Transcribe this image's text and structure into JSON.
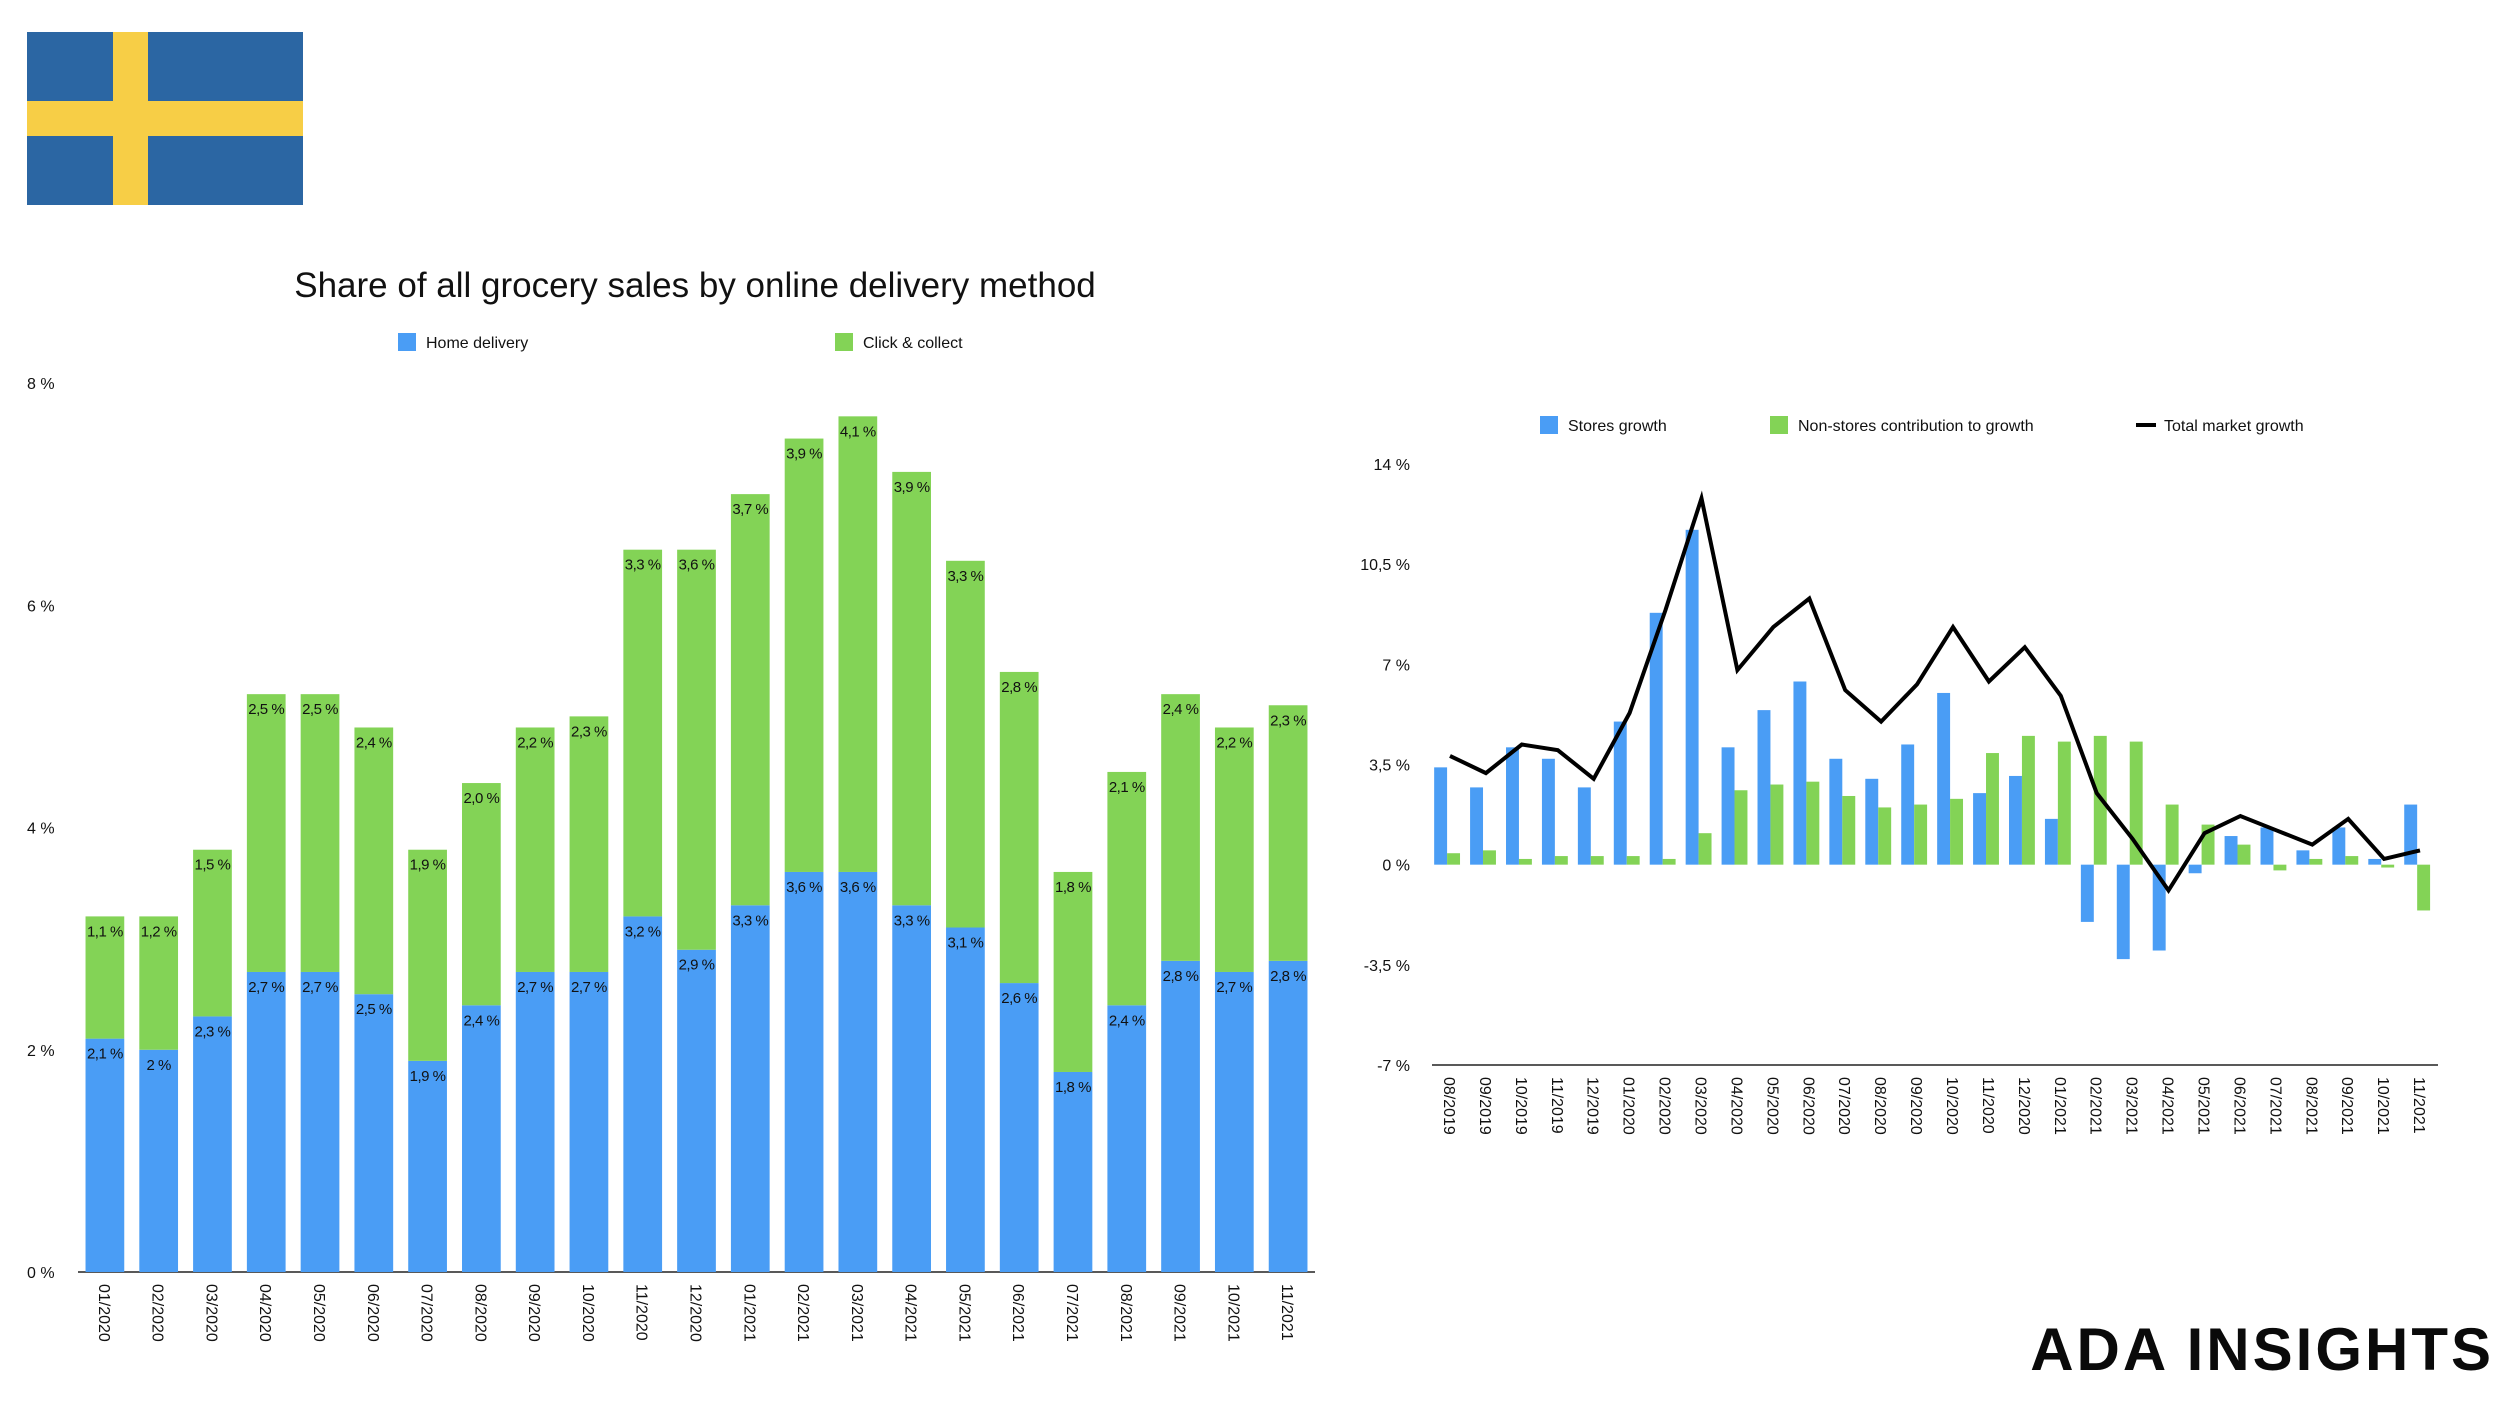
{
  "flag": {
    "name": "sweden-flag",
    "colors": {
      "blue": "#2B66A3",
      "yellow": "#F7CE46"
    }
  },
  "brand": "ADA INSIGHTS",
  "colors": {
    "blue": "#4A9DF5",
    "green": "#83D356",
    "line": "#000000",
    "axis": "#222222"
  },
  "chart_data": [
    {
      "type": "bar",
      "stacked": true,
      "title": "Share of all grocery sales by online delivery method",
      "xlabel": "",
      "ylabel": "",
      "ylim": [
        0,
        8
      ],
      "yticks": [
        "0 %",
        "2 %",
        "4 %",
        "6 %",
        "8 %"
      ],
      "yticks_values": [
        0,
        2,
        4,
        6,
        8
      ],
      "grid": false,
      "legend_position": "top",
      "categories": [
        "01/2020",
        "02/2020",
        "03/2020",
        "04/2020",
        "05/2020",
        "06/2020",
        "07/2020",
        "08/2020",
        "09/2020",
        "10/2020",
        "11/2020",
        "12/2020",
        "01/2021",
        "02/2021",
        "03/2021",
        "04/2021",
        "05/2021",
        "06/2021",
        "07/2021",
        "08/2021",
        "09/2021",
        "10/2021",
        "11/2021"
      ],
      "series": [
        {
          "name": "Home delivery",
          "color": "#4A9DF5",
          "values": [
            2.1,
            2.0,
            2.3,
            2.7,
            2.7,
            2.5,
            1.9,
            2.4,
            2.7,
            2.7,
            3.2,
            2.9,
            3.3,
            3.6,
            3.6,
            3.3,
            3.1,
            2.6,
            1.8,
            2.4,
            2.8,
            2.7,
            2.8
          ],
          "labels": [
            "2,1 %",
            "2 %",
            "2,3 %",
            "2,7 %",
            "2,7 %",
            "2,5 %",
            "1,9 %",
            "2,4 %",
            "2,7 %",
            "2,7 %",
            "3,2 %",
            "2,9 %",
            "3,3 %",
            "3,6 %",
            "3,6 %",
            "3,3 %",
            "3,1 %",
            "2,6 %",
            "1,8 %",
            "2,4 %",
            "2,8 %",
            "2,7 %",
            "2,8 %"
          ]
        },
        {
          "name": "Click & collect",
          "color": "#83D356",
          "values": [
            1.1,
            1.2,
            1.5,
            2.5,
            2.5,
            2.4,
            1.9,
            2.0,
            2.2,
            2.3,
            3.3,
            3.6,
            3.7,
            3.9,
            4.1,
            3.9,
            3.3,
            2.8,
            1.8,
            2.1,
            2.4,
            2.2,
            2.3
          ],
          "labels": [
            "1,1 %",
            "1,2 %",
            "1,5 %",
            "2,5 %",
            "2,5 %",
            "2,4 %",
            "1,9 %",
            "2,0 %",
            "2,2 %",
            "2,3 %",
            "3,3 %",
            "3,6 %",
            "3,7 %",
            "3,9 %",
            "4,1 %",
            "3,9 %",
            "3,3 %",
            "2,8 %",
            "1,8 %",
            "2,1 %",
            "2,4 %",
            "2,2 %",
            "2,3 %"
          ]
        }
      ]
    },
    {
      "type": "bar",
      "title": "",
      "xlabel": "",
      "ylabel": "",
      "ylim": [
        -7,
        14
      ],
      "yticks": [
        "-7 %",
        "-3,5 %",
        "0 %",
        "3,5 %",
        "7 %",
        "10,5 %",
        "14 %"
      ],
      "yticks_values": [
        -7,
        -3.5,
        0,
        3.5,
        7,
        10.5,
        14
      ],
      "grid": false,
      "legend_position": "top",
      "categories": [
        "08/2019",
        "09/2019",
        "10/2019",
        "11/2019",
        "12/2019",
        "01/2020",
        "02/2020",
        "03/2020",
        "04/2020",
        "05/2020",
        "06/2020",
        "07/2020",
        "08/2020",
        "09/2020",
        "10/2020",
        "11/2020",
        "12/2020",
        "01/2021",
        "02/2021",
        "03/2021",
        "04/2021",
        "05/2021",
        "06/2021",
        "07/2021",
        "08/2021",
        "09/2021",
        "10/2021",
        "11/2021"
      ],
      "series": [
        {
          "name": "Stores growth",
          "type": "bar",
          "color": "#4A9DF5",
          "values": [
            3.4,
            2.7,
            4.1,
            3.7,
            2.7,
            5.0,
            8.8,
            11.7,
            4.1,
            5.4,
            6.4,
            3.7,
            3.0,
            4.2,
            6.0,
            2.5,
            3.1,
            1.6,
            -2.0,
            -3.3,
            -3.0,
            -0.3,
            1.0,
            1.3,
            0.5,
            1.3,
            0.2,
            2.1
          ]
        },
        {
          "name": "Non-stores contribution to growth",
          "type": "bar",
          "color": "#83D356",
          "values": [
            0.4,
            0.5,
            0.2,
            0.3,
            0.3,
            0.3,
            0.2,
            1.1,
            2.6,
            2.8,
            2.9,
            2.4,
            2.0,
            2.1,
            2.3,
            3.9,
            4.5,
            4.3,
            4.5,
            4.3,
            2.1,
            1.4,
            0.7,
            -0.2,
            0.2,
            0.3,
            -0.1,
            -1.6
          ]
        },
        {
          "name": "Total market growth",
          "type": "line",
          "color": "#000000",
          "values": [
            3.8,
            3.2,
            4.2,
            4.0,
            3.0,
            5.3,
            8.9,
            12.8,
            6.8,
            8.3,
            9.3,
            6.1,
            5.0,
            6.3,
            8.3,
            6.4,
            7.6,
            5.9,
            2.5,
            0.9,
            -0.9,
            1.1,
            1.7,
            1.2,
            0.7,
            1.6,
            0.2,
            0.5
          ]
        }
      ]
    }
  ]
}
